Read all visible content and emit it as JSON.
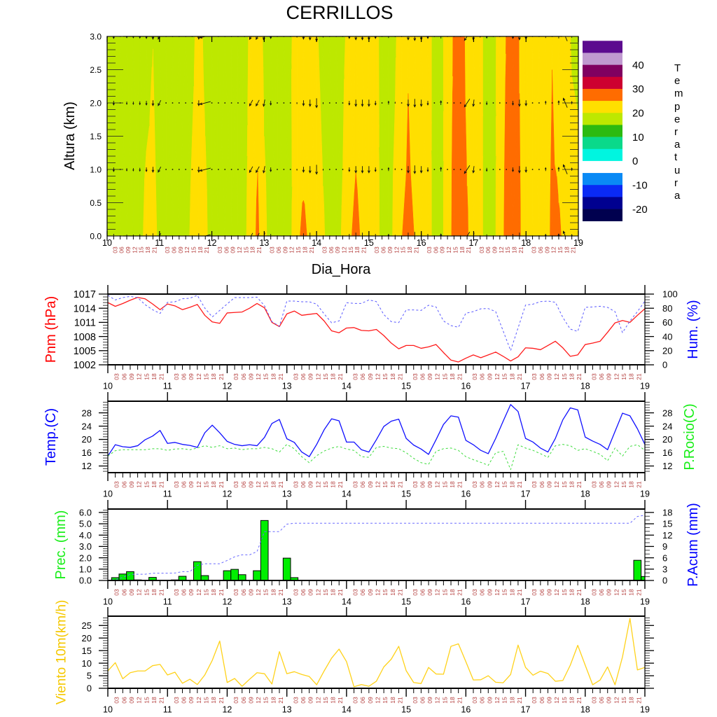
{
  "time_axis": {
    "start_day": 10,
    "end_day": 19,
    "step_hours": 3,
    "day_labels": [
      "10",
      "11",
      "12",
      "13",
      "14",
      "15",
      "16",
      "17",
      "18",
      "19"
    ],
    "hour_labels": [
      "03",
      "06",
      "09",
      "12",
      "15",
      "18",
      "21"
    ]
  },
  "chart_data": [
    {
      "type": "heatmap",
      "title": "CERRILLOS",
      "xlabel": "Dia_Hora",
      "ylabel": "Altura (km)",
      "xlim_days": [
        10,
        19
      ],
      "ylim": [
        0,
        3
      ],
      "y_ticks": [
        0,
        0.5,
        1,
        1.5,
        2,
        2.5,
        3
      ],
      "y_tick_labels": [
        "0.0",
        "0.5",
        "1.0",
        "1.5",
        "2.0",
        "2.5",
        "3.0"
      ],
      "y_minor_step": 0.1,
      "field": {
        "heights_km": [
          0,
          3
        ],
        "values": [
          [
            17.5,
            17.5,
            17.5,
            17.5,
            17.5,
            18.5,
            21.5,
            21.5,
            19.0,
            17.5,
            17.5,
            17.5,
            18.5,
            21.0,
            22.5,
            21.0,
            18.0,
            17.5,
            17.5,
            17.5,
            17.5,
            19.0,
            22.5,
            26.0,
            21.0,
            18.5,
            17.5,
            17.5,
            19.0,
            24.1,
            26.0,
            24.1,
            22.5,
            20.5,
            18.5,
            18.5,
            20.5,
            24.4,
            26.0,
            24.4,
            22.5,
            21.5,
            19.0,
            18.5,
            21.0,
            24.9,
            26.0,
            24.9,
            22.5,
            22.0,
            18.5,
            18.5,
            22.5,
            26.5,
            27.5,
            25.5,
            22.5,
            21.0,
            18.5,
            18.5,
            22.5,
            26.5,
            27.5,
            25.5,
            22.5,
            22.5,
            22.5,
            23.0,
            26.0,
            25.6,
            24.0,
            22.0,
            21.5
          ],
          [
            17.5,
            17.5,
            17.5,
            17.5,
            17.5,
            17.5,
            18.0,
            19.9,
            17.5,
            17.5,
            17.5,
            17.5,
            17.5,
            19.0,
            21.5,
            19.0,
            17.5,
            17.5,
            17.5,
            17.5,
            17.5,
            18.0,
            21.5,
            22.9,
            19.0,
            18.0,
            17.5,
            17.5,
            19.5,
            21.5,
            20.4,
            21.0,
            20.5,
            18.5,
            17.5,
            17.5,
            19.0,
            21.5,
            22.9,
            22.0,
            22.0,
            21.0,
            19.0,
            18.5,
            19.5,
            22.0,
            24.6,
            22.5,
            22.5,
            22.0,
            18.5,
            18.5,
            22.5,
            25.5,
            27.5,
            23.5,
            22.5,
            21.0,
            18.5,
            18.5,
            22.0,
            25.2,
            27.5,
            24.8,
            22.5,
            22.5,
            22.5,
            22.5,
            24.8,
            22.0,
            22.0,
            19.5,
            19.0
          ]
        ]
      },
      "wind": {
        "levels_km": [
          0,
          1,
          2,
          3
        ],
        "u": [
          0,
          0,
          0,
          0,
          0,
          0,
          0,
          0,
          -1,
          0,
          0,
          0,
          0,
          0,
          0,
          -4,
          0,
          0,
          0,
          0,
          0,
          0,
          -1.2,
          -1.2,
          -0.5,
          0,
          0,
          0,
          0,
          0,
          0,
          0,
          0,
          0,
          0,
          0,
          0,
          0,
          0,
          0,
          0,
          0,
          0,
          0,
          0,
          0,
          0,
          0,
          0,
          0,
          0,
          0,
          0,
          0,
          0,
          -2,
          -0.3,
          0,
          0,
          0,
          0,
          0,
          0,
          0,
          0,
          0,
          0,
          0,
          0,
          0,
          -1.5,
          0,
          0
        ],
        "v": [
          -1,
          -1.5,
          -0.3,
          -1,
          -1,
          -1.2,
          -1.5,
          -2,
          -2,
          -0.3,
          -0.3,
          -0.3,
          -0.3,
          -0.3,
          -2,
          -1,
          -0.3,
          -0.3,
          -0.3,
          -0.3,
          -0.3,
          -0.3,
          -2.2,
          -2.2,
          -2.5,
          -1.5,
          -0.3,
          -0.3,
          -0.3,
          -0.5,
          -2,
          -2.5,
          -3.5,
          -0.5,
          -0.3,
          -0.3,
          -0.3,
          -1.5,
          -2.5,
          -2.5,
          -2.5,
          -1.5,
          -0.3,
          1.2,
          0.5,
          -0.3,
          -2.5,
          -3,
          -2.5,
          -1.5,
          -0.3,
          1.5,
          -0.3,
          -0.3,
          -0.3,
          -3,
          -2.5,
          -0.5,
          -1.2,
          -0.3,
          -0.3,
          -0.3,
          -1.5,
          -2.5,
          -2,
          -0.3,
          -0.3,
          1.2,
          -0.3,
          1.5,
          3.5,
          1,
          -0.3
        ]
      },
      "legend": {
        "title": "Temperatura",
        "position": "right",
        "levels": [
          -20,
          -15,
          -10,
          -5,
          0,
          5,
          10,
          15,
          20,
          25,
          30,
          35,
          40,
          45
        ],
        "colors": [
          "#00004f",
          "#000090",
          "#0a2af5",
          "#0a8af5",
          "#ffffff",
          "#00f5e0",
          "#0ad98a",
          "#2cba10",
          "#bde800",
          "#ffdf00",
          "#ff6c00",
          "#cd0030",
          "#800060",
          "#c09ad0",
          "#5c0b8f"
        ],
        "labels": [
          "40",
          "30",
          "20",
          "10",
          "0",
          "-10",
          "-20"
        ],
        "label_values": [
          40,
          30,
          20,
          10,
          0,
          -10,
          -20
        ]
      }
    },
    {
      "type": "line",
      "xlim_days": [
        10,
        19
      ],
      "left": {
        "label": "Pnm (hPa)",
        "color": "#ff0000",
        "series_color": "#ff1a1a",
        "dashed": false,
        "ylim": [
          1002,
          1017
        ],
        "ticks": [
          1002,
          1005,
          1008,
          1011,
          1014,
          1017
        ],
        "tick_labels": [
          "1002",
          "1005",
          "1008",
          "1011",
          "1014",
          "1017"
        ],
        "minor_step": 0.6,
        "values": [
          1015.2,
          1014.4,
          1015.0,
          1015.7,
          1016.3,
          1016.0,
          1014.9,
          1013.7,
          1014.9,
          1014.5,
          1013.7,
          1014.2,
          1014.8,
          1012.5,
          1011.1,
          1010.8,
          1013.0,
          1013.1,
          1013.2,
          1014.0,
          1015.0,
          1014.1,
          1011.0,
          1010.1,
          1012.8,
          1013.4,
          1012.5,
          1012.7,
          1012.9,
          1011.3,
          1009.2,
          1008.8,
          1009.8,
          1009.9,
          1009.3,
          1009.2,
          1009.5,
          1008.2,
          1006.6,
          1005.4,
          1006.1,
          1006.1,
          1005.5,
          1005.8,
          1006.3,
          1004.6,
          1003.0,
          1002.6,
          1003.4,
          1004.1,
          1003.5,
          1004.1,
          1004.7,
          1003.8,
          1002.8,
          1003.7,
          1005.6,
          1005.5,
          1005.2,
          1006.1,
          1007.0,
          1005.6,
          1003.8,
          1004.1,
          1006.3,
          1006.6,
          1007.0,
          1008.9,
          1010.9,
          1011.4,
          1011.0,
          1012.5,
          1013.9
        ]
      },
      "right": {
        "label": "Hum. (%)",
        "color": "#0000ff",
        "series_color": "#5a5aff",
        "dashed": true,
        "ylim": [
          0,
          100
        ],
        "ticks": [
          0,
          20,
          40,
          60,
          80,
          100
        ],
        "tick_labels": [
          "0",
          "20",
          "40",
          "60",
          "80",
          "100"
        ],
        "minor_step": 4,
        "values": [
          98.3,
          91.7,
          95.0,
          96.7,
          95.0,
          85.0,
          77.9,
          72.6,
          88.4,
          89.1,
          93.4,
          94.1,
          98.3,
          80.2,
          67.7,
          76.9,
          86.1,
          95.0,
          95.0,
          95.0,
          95.7,
          83.5,
          61.0,
          54.5,
          90.1,
          90.1,
          89.1,
          89.1,
          85.8,
          72.0,
          59.4,
          62.0,
          87.8,
          86.8,
          86.8,
          91.7,
          89.4,
          71.0,
          61.0,
          59.7,
          77.6,
          77.6,
          76.9,
          84.2,
          81.8,
          62.0,
          55.4,
          53.1,
          72.9,
          75.2,
          79.2,
          79.5,
          75.2,
          47.9,
          20.1,
          52.1,
          84.5,
          85.8,
          89.4,
          90.1,
          88.4,
          67.0,
          50.5,
          47.2,
          81.2,
          81.8,
          82.8,
          81.2,
          75.2,
          45.5,
          62.0,
          75.2,
          90.1
        ]
      }
    },
    {
      "type": "line",
      "xlim_days": [
        10,
        19
      ],
      "left": {
        "label": "Temp.(C)",
        "color": "#0000ff",
        "series_color": "#1010ff",
        "dashed": false,
        "ylim": [
          10,
          31.5
        ],
        "ticks": [
          12,
          16,
          20,
          24,
          28
        ],
        "tick_labels": [
          "12",
          "16",
          "20",
          "24",
          "28"
        ],
        "minor_step": 0.8,
        "values": [
          15.0,
          18.4,
          17.8,
          17.6,
          18.1,
          19.9,
          21.0,
          22.7,
          18.8,
          19.1,
          18.5,
          18.2,
          17.6,
          22.0,
          24.3,
          22.0,
          19.4,
          18.5,
          18.1,
          18.4,
          18.1,
          20.6,
          24.8,
          26.0,
          20.2,
          19.1,
          16.2,
          14.8,
          18.5,
          22.9,
          26.2,
          25.6,
          19.2,
          19.2,
          16.9,
          16.2,
          19.9,
          23.9,
          25.5,
          26.1,
          20.3,
          18.3,
          17.1,
          15.5,
          19.9,
          24.5,
          27.1,
          26.7,
          19.7,
          18.4,
          16.7,
          15.7,
          20.3,
          25.5,
          30.5,
          28.4,
          20.3,
          19.2,
          17.4,
          16.2,
          20.3,
          25.9,
          29.5,
          28.9,
          20.7,
          19.5,
          18.5,
          16.9,
          22.4,
          27.9,
          27.1,
          23.2,
          18.5
        ]
      },
      "right": {
        "label": "P.Rocio(C)",
        "color": "#1aee1a",
        "series_color": "#3ddc3d",
        "dashed": true,
        "ylim": [
          10,
          31.5
        ],
        "ticks": [
          12,
          16,
          20,
          24,
          28
        ],
        "tick_labels": [
          "12",
          "16",
          "20",
          "24",
          "28"
        ],
        "minor_step": 0.8,
        "values": [
          15.0,
          16.6,
          16.9,
          16.9,
          16.9,
          16.9,
          17.2,
          17.2,
          16.7,
          17.1,
          17.2,
          16.9,
          17.4,
          18.1,
          17.6,
          18.1,
          17.2,
          17.4,
          16.9,
          17.2,
          17.2,
          17.6,
          17.2,
          16.2,
          18.5,
          17.2,
          14.8,
          13.0,
          15.1,
          16.5,
          17.4,
          17.9,
          17.1,
          16.7,
          14.8,
          14.6,
          17.6,
          17.9,
          17.4,
          17.2,
          16.0,
          14.3,
          13.0,
          12.5,
          16.4,
          17.2,
          17.4,
          16.7,
          14.8,
          13.9,
          13.1,
          12.2,
          16.0,
          16.4,
          10.9,
          18.4,
          17.4,
          16.7,
          15.7,
          14.6,
          18.1,
          18.5,
          18.1,
          16.7,
          17.2,
          16.4,
          15.5,
          13.6,
          17.4,
          15.0,
          17.9,
          18.4,
          16.7
        ]
      }
    },
    {
      "type": "bar",
      "xlim_days": [
        10,
        19
      ],
      "left": {
        "label": "Prec. (mm)",
        "color": "#1aee1a",
        "series_color": "#00ee00",
        "bars": true,
        "ylim": [
          0,
          6.3
        ],
        "ticks": [
          0,
          1,
          2,
          3,
          4,
          5,
          6
        ],
        "tick_labels": [
          "0.0",
          "1.0",
          "2.0",
          "3.0",
          "4.0",
          "5.0",
          "6.0"
        ],
        "minor_step": 0.2,
        "values": [
          0,
          0.25,
          0.57,
          0.78,
          0.05,
          0,
          0.27,
          0,
          0,
          0.05,
          0.37,
          0,
          1.66,
          0.43,
          0,
          0,
          0.86,
          0.98,
          0.51,
          0,
          0.86,
          5.29,
          0,
          0,
          1.97,
          0.25,
          0,
          0,
          0,
          0,
          0,
          0,
          0,
          0,
          0,
          0,
          0,
          0,
          0,
          0,
          0,
          0,
          0,
          0,
          0,
          0,
          0,
          0,
          0,
          0,
          0,
          0,
          0,
          0,
          0,
          0,
          0,
          0,
          0,
          0,
          0,
          0,
          0,
          0,
          0,
          0,
          0,
          0,
          0,
          0,
          0,
          1.78,
          0.35
        ]
      },
      "right": {
        "label": "P.Acum (mm)",
        "color": "#0000ff",
        "series_color": "#6a6aff",
        "dashed": true,
        "ylim": [
          0,
          18.9
        ],
        "ticks": [
          0,
          3,
          6,
          9,
          12,
          15,
          18
        ],
        "tick_labels": [
          "0",
          "3",
          "6",
          "9",
          "12",
          "15",
          "18"
        ],
        "minor_step": 1,
        "values": [
          0,
          0.25,
          0.82,
          1.6,
          1.65,
          1.65,
          1.92,
          1.92,
          1.92,
          1.97,
          2.34,
          2.34,
          4.0,
          4.43,
          4.43,
          4.43,
          5.29,
          6.27,
          6.78,
          6.78,
          7.64,
          12.93,
          12.93,
          12.93,
          14.9,
          15.15,
          15.15,
          15.15,
          15.15,
          15.15,
          15.15,
          15.15,
          15.15,
          15.15,
          15.15,
          15.15,
          15.15,
          15.15,
          15.15,
          15.15,
          15.15,
          15.15,
          15.15,
          15.15,
          15.15,
          15.15,
          15.15,
          15.15,
          15.15,
          15.15,
          15.15,
          15.15,
          15.15,
          15.15,
          15.15,
          15.15,
          15.15,
          15.15,
          15.15,
          15.15,
          15.15,
          15.15,
          15.15,
          15.15,
          15.15,
          15.15,
          15.15,
          15.15,
          15.15,
          15.15,
          15.15,
          16.93,
          17.28
        ]
      }
    },
    {
      "type": "line",
      "xlim_days": [
        10,
        19
      ],
      "left": {
        "label": "Viento 10m(km/h)",
        "color": "#f5c800",
        "series_color": "#ffd21a",
        "dashed": false,
        "ylim": [
          0,
          28.7
        ],
        "ticks": [
          0,
          5,
          10,
          15,
          20,
          25
        ],
        "tick_labels": [
          "0",
          "5",
          "10",
          "15",
          "20",
          "25"
        ],
        "minor_step": 1,
        "values": [
          6.9,
          10.2,
          3.8,
          6.2,
          6.9,
          6.9,
          9.0,
          9.5,
          5.3,
          6.4,
          2.0,
          3.6,
          1.5,
          5.3,
          11.1,
          18.8,
          2.3,
          3.9,
          0.8,
          3.6,
          6.2,
          5.8,
          1.7,
          14.6,
          5.8,
          6.6,
          5.5,
          4.7,
          1.4,
          6.9,
          12.0,
          15.6,
          10.6,
          0.6,
          1.5,
          0.8,
          2.8,
          8.5,
          11.6,
          16.7,
          7.0,
          2.3,
          1.9,
          8.3,
          5.7,
          5.6,
          16.7,
          17.7,
          10.6,
          3.3,
          3.4,
          5.0,
          2.4,
          2.2,
          5.5,
          17.2,
          8.3,
          5.2,
          6.8,
          5.9,
          2.8,
          3.1,
          9.2,
          17.1,
          9.2,
          1.4,
          3.3,
          8.5,
          1.4,
          12.5,
          27.8,
          7.3,
          8.3
        ]
      },
      "right": {
        "ylim": [
          0,
          28.7
        ],
        "ticks": [
          0,
          5,
          10,
          15,
          20,
          25
        ],
        "minor_step": 1
      }
    }
  ]
}
